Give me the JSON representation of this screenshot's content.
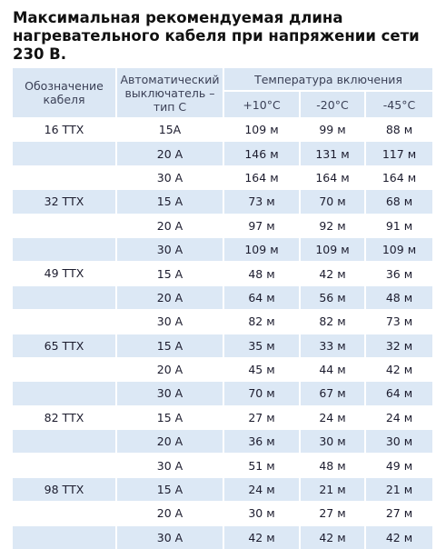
{
  "title_lines": [
    "Максимальная рекомендуемая длина",
    "нагревательного кабеля при напряжении сети",
    "230 В."
  ],
  "table": {
    "header": {
      "cable": "Обозначение кабеля",
      "breaker": "Автоматический выключатель – тип С",
      "group": "Температура включения",
      "temps": [
        "+10°C",
        "-20°C",
        "-45°C"
      ]
    },
    "groups": [
      {
        "cable": "16 ТТХ",
        "rows": [
          [
            "15А",
            "109 м",
            "99 м",
            "88 м"
          ],
          [
            "20 А",
            "146 м",
            "131 м",
            "117 м"
          ],
          [
            "30 А",
            "164 м",
            "164 м",
            "164 м"
          ]
        ]
      },
      {
        "cable": "32 ТТХ",
        "rows": [
          [
            "15 А",
            "73 м",
            "70 м",
            "68 м"
          ],
          [
            "20 А",
            "97 м",
            "92 м",
            "91 м"
          ],
          [
            "30 А",
            "109 м",
            "109 м",
            "109 м"
          ]
        ]
      },
      {
        "cable": "49 ТТХ",
        "rows": [
          [
            "15 А",
            "48 м",
            "42 м",
            "36 м"
          ],
          [
            "20 А",
            "64 м",
            "56 м",
            "48 м"
          ],
          [
            "30 А",
            "82 м",
            "82 м",
            "73 м"
          ]
        ]
      },
      {
        "cable": "65 ТТХ",
        "rows": [
          [
            "15 А",
            "35 м",
            "33 м",
            "32 м"
          ],
          [
            "20 А",
            "45 м",
            "44 м",
            "42 м"
          ],
          [
            "30 А",
            "70 м",
            "67 м",
            "64 м"
          ]
        ]
      },
      {
        "cable": "82 ТТХ",
        "rows": [
          [
            "15 А",
            "27 м",
            "24 м",
            "24 м"
          ],
          [
            "20 А",
            "36 м",
            "30 м",
            "30 м"
          ],
          [
            "30 А",
            "51 м",
            "48 м",
            "49 м"
          ]
        ]
      },
      {
        "cable": "98 ТТХ",
        "rows": [
          [
            "15 А",
            "24 м",
            "21 м",
            "21 м"
          ],
          [
            "20 А",
            "30 м",
            "27 м",
            "27 м"
          ],
          [
            "30 А",
            "42 м",
            "42 м",
            "42 м"
          ]
        ]
      }
    ]
  }
}
